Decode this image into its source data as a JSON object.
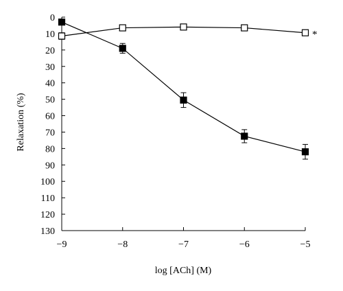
{
  "chart_data": {
    "type": "line",
    "xlabel": "log [ACh] (M)",
    "ylabel": "Relaxation (%)",
    "x": [
      -9,
      -8,
      -7,
      -6,
      -5
    ],
    "xlim": [
      -9,
      -5
    ],
    "ylim": [
      0,
      130
    ],
    "y_inverted": true,
    "x_ticks": [
      -9,
      -8,
      -7,
      -6,
      -5
    ],
    "x_tick_labels": [
      "−9",
      "−8",
      "−7",
      "−6",
      "−5"
    ],
    "y_ticks": [
      0,
      10,
      20,
      30,
      40,
      50,
      60,
      70,
      80,
      90,
      100,
      110,
      120,
      130
    ],
    "y_tick_labels": [
      "0",
      "10",
      "20",
      "30",
      "40",
      "50",
      "60",
      "70",
      "80",
      "90",
      "100",
      "110",
      "120",
      "130"
    ],
    "grid": false,
    "legend": "none",
    "series": [
      {
        "marker": "open-square",
        "values": [
          11.5,
          6.5,
          6,
          6.5,
          9.5
        ],
        "errors": [
          2,
          1,
          0.8,
          0.8,
          1.5
        ]
      },
      {
        "marker": "filled-square",
        "values": [
          3,
          19,
          50.5,
          72.5,
          82
        ],
        "errors": [
          0,
          3,
          4.5,
          4,
          4.5
        ]
      }
    ],
    "annotations": [
      {
        "text": "*",
        "series_index": 0,
        "x": -5
      }
    ],
    "colors": {
      "line": "#000000",
      "marker_fill": "#000000",
      "open_marker_fill": "#ffffff"
    }
  }
}
